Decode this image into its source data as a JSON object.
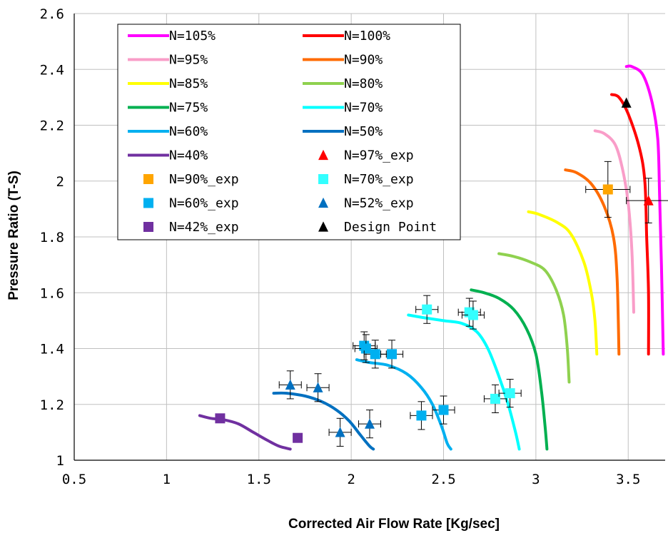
{
  "chart_data": {
    "type": "line",
    "xlabel": "Corrected Air Flow Rate [Kg/sec]",
    "ylabel": "Pressure Ratio (T-S)",
    "xlim": [
      0.5,
      3.7
    ],
    "ylim": [
      1.0,
      2.6
    ],
    "x_ticks": [
      0.5,
      1,
      1.5,
      2,
      2.5,
      3,
      3.5
    ],
    "x_tick_labels": [
      "0.5",
      "1",
      "1.5",
      "2",
      "2.5",
      "3",
      "3.5"
    ],
    "y_ticks": [
      1,
      1.2,
      1.4,
      1.6,
      1.8,
      2,
      2.2,
      2.4,
      2.6
    ],
    "y_tick_labels": [
      "1",
      "1.2",
      "1.4",
      "1.6",
      "1.8",
      "2",
      "2.2",
      "2.4",
      "2.6"
    ],
    "grid": true,
    "legend_position": "top-left",
    "series": [
      {
        "name": "N=105%",
        "color": "#ff00ff",
        "points": [
          [
            3.49,
            2.41
          ],
          [
            3.52,
            2.41
          ],
          [
            3.58,
            2.38
          ],
          [
            3.63,
            2.28
          ],
          [
            3.66,
            2.15
          ],
          [
            3.67,
            1.95
          ],
          [
            3.68,
            1.7
          ],
          [
            3.69,
            1.38
          ]
        ]
      },
      {
        "name": "N=100%",
        "color": "#ff0000",
        "points": [
          [
            3.41,
            2.31
          ],
          [
            3.45,
            2.3
          ],
          [
            3.5,
            2.24
          ],
          [
            3.56,
            2.12
          ],
          [
            3.59,
            2.0
          ],
          [
            3.6,
            1.8
          ],
          [
            3.61,
            1.6
          ],
          [
            3.61,
            1.38
          ]
        ]
      },
      {
        "name": "N=95%",
        "color": "#f99dc8",
        "points": [
          [
            3.32,
            2.18
          ],
          [
            3.37,
            2.17
          ],
          [
            3.43,
            2.13
          ],
          [
            3.47,
            2.04
          ],
          [
            3.5,
            1.92
          ],
          [
            3.52,
            1.75
          ],
          [
            3.53,
            1.53
          ]
        ]
      },
      {
        "name": "N=90%",
        "color": "#ff6b00",
        "points": [
          [
            3.16,
            2.04
          ],
          [
            3.22,
            2.03
          ],
          [
            3.3,
            1.99
          ],
          [
            3.37,
            1.91
          ],
          [
            3.42,
            1.8
          ],
          [
            3.44,
            1.65
          ],
          [
            3.45,
            1.38
          ]
        ]
      },
      {
        "name": "N=85%",
        "color": "#ffff00",
        "points": [
          [
            2.96,
            1.89
          ],
          [
            3.02,
            1.88
          ],
          [
            3.12,
            1.85
          ],
          [
            3.19,
            1.81
          ],
          [
            3.26,
            1.71
          ],
          [
            3.3,
            1.6
          ],
          [
            3.32,
            1.5
          ],
          [
            3.33,
            1.38
          ]
        ]
      },
      {
        "name": "N=80%",
        "color": "#8fd14f",
        "points": [
          [
            2.8,
            1.74
          ],
          [
            2.88,
            1.73
          ],
          [
            2.97,
            1.71
          ],
          [
            3.05,
            1.68
          ],
          [
            3.11,
            1.61
          ],
          [
            3.15,
            1.52
          ],
          [
            3.17,
            1.4
          ],
          [
            3.18,
            1.28
          ]
        ]
      },
      {
        "name": "N=75%",
        "color": "#00b050",
        "points": [
          [
            2.65,
            1.61
          ],
          [
            2.72,
            1.6
          ],
          [
            2.8,
            1.58
          ],
          [
            2.88,
            1.54
          ],
          [
            2.95,
            1.47
          ],
          [
            3.0,
            1.38
          ],
          [
            3.03,
            1.25
          ],
          [
            3.05,
            1.12
          ],
          [
            3.06,
            1.04
          ]
        ]
      },
      {
        "name": "N=70%",
        "color": "#00ffff",
        "points": [
          [
            2.31,
            1.52
          ],
          [
            2.4,
            1.51
          ],
          [
            2.5,
            1.5
          ],
          [
            2.6,
            1.49
          ],
          [
            2.68,
            1.46
          ],
          [
            2.74,
            1.4
          ],
          [
            2.8,
            1.3
          ],
          [
            2.85,
            1.2
          ],
          [
            2.89,
            1.1
          ],
          [
            2.91,
            1.04
          ]
        ]
      },
      {
        "name": "N=60%",
        "color": "#00b0f0",
        "points": [
          [
            2.03,
            1.36
          ],
          [
            2.1,
            1.35
          ],
          [
            2.2,
            1.34
          ],
          [
            2.3,
            1.31
          ],
          [
            2.38,
            1.26
          ],
          [
            2.44,
            1.2
          ],
          [
            2.49,
            1.12
          ],
          [
            2.52,
            1.06
          ],
          [
            2.54,
            1.04
          ]
        ]
      },
      {
        "name": "N=50%",
        "color": "#0070c0",
        "points": [
          [
            1.58,
            1.24
          ],
          [
            1.65,
            1.24
          ],
          [
            1.75,
            1.23
          ],
          [
            1.84,
            1.21
          ],
          [
            1.92,
            1.18
          ],
          [
            1.99,
            1.14
          ],
          [
            2.05,
            1.09
          ],
          [
            2.1,
            1.05
          ],
          [
            2.12,
            1.04
          ]
        ]
      },
      {
        "name": "N=40%",
        "color": "#7030a0",
        "points": [
          [
            1.18,
            1.16
          ],
          [
            1.24,
            1.15
          ],
          [
            1.31,
            1.145
          ],
          [
            1.39,
            1.13
          ],
          [
            1.47,
            1.1
          ],
          [
            1.55,
            1.07
          ],
          [
            1.61,
            1.05
          ],
          [
            1.67,
            1.04
          ]
        ]
      }
    ],
    "experimental": [
      {
        "name": "N=97%_exp",
        "marker": "triangle",
        "color": "#ff0000",
        "points": [
          [
            3.61,
            1.93
          ]
        ],
        "xerr": 0.12,
        "yerr": 0.08
      },
      {
        "name": "N=90%_exp",
        "marker": "square",
        "color": "#ffa500",
        "points": [
          [
            3.39,
            1.97
          ]
        ],
        "xerr": 0.12,
        "yerr": 0.1
      },
      {
        "name": "N=70%_exp",
        "marker": "square",
        "color": "#33ffff",
        "points": [
          [
            2.41,
            1.54
          ],
          [
            2.64,
            1.53
          ],
          [
            2.66,
            1.52
          ],
          [
            2.78,
            1.22
          ],
          [
            2.86,
            1.24
          ]
        ],
        "xerr": 0.06,
        "yerr": 0.05
      },
      {
        "name": "N=60%_exp",
        "marker": "square",
        "color": "#00b0f0",
        "points": [
          [
            2.07,
            1.41
          ],
          [
            2.08,
            1.4
          ],
          [
            2.13,
            1.38
          ],
          [
            2.22,
            1.38
          ],
          [
            2.38,
            1.16
          ],
          [
            2.5,
            1.18
          ]
        ],
        "xerr": 0.06,
        "yerr": 0.05
      },
      {
        "name": "N=52%_exp",
        "marker": "triangle",
        "color": "#0070c0",
        "points": [
          [
            1.67,
            1.27
          ],
          [
            1.82,
            1.26
          ],
          [
            1.94,
            1.1
          ],
          [
            2.1,
            1.13
          ]
        ],
        "xerr": 0.06,
        "yerr": 0.05
      },
      {
        "name": "N=42%_exp",
        "marker": "square",
        "color": "#7030a0",
        "points": [
          [
            1.29,
            1.15
          ],
          [
            1.71,
            1.08
          ]
        ],
        "xerr": 0,
        "yerr": 0
      },
      {
        "name": "Design Point",
        "marker": "triangle",
        "color": "#000000",
        "points": [
          [
            3.49,
            2.28
          ]
        ],
        "xerr": 0,
        "yerr": 0
      }
    ],
    "legend_order": [
      "N=105%",
      "N=100%",
      "N=95%",
      "N=90%",
      "N=85%",
      "N=80%",
      "N=75%",
      "N=70%",
      "N=60%",
      "N=50%",
      "N=40%",
      "N=97%_exp",
      "N=90%_exp",
      "N=70%_exp",
      "N=60%_exp",
      "N=52%_exp",
      "N=42%_exp",
      "Design Point"
    ]
  }
}
